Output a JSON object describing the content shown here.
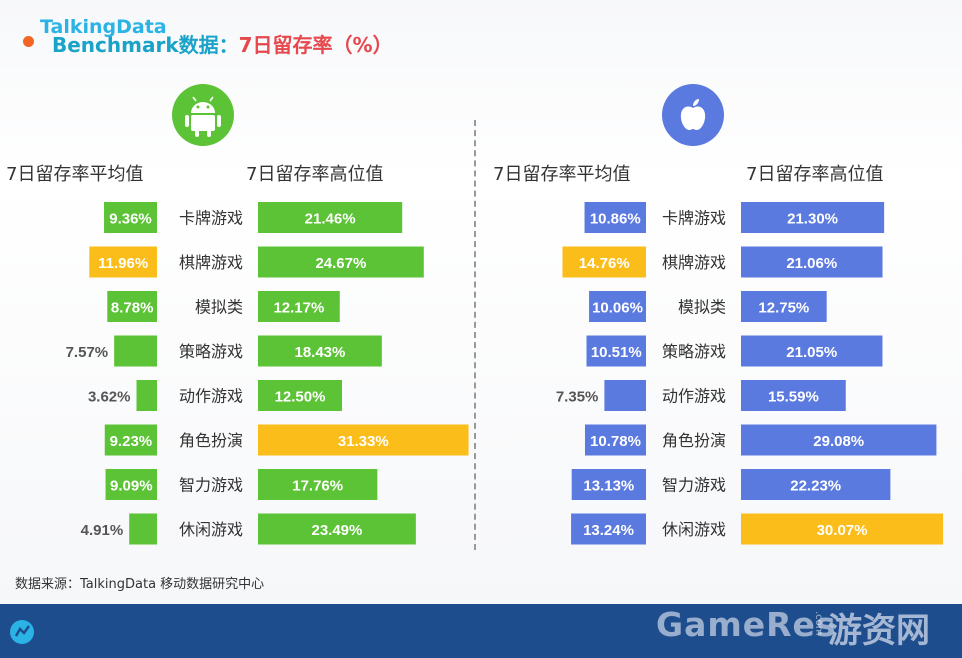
{
  "title": {
    "part1": "Benchmark数据：",
    "part2": "7日留存率（%）"
  },
  "source": "数据来源：TalkingData 移动数据研究中心",
  "footer": {
    "logo": "TalkingData",
    "watermark": "GameRes",
    "watermark_small": ".com",
    "watermark_cn": "游资网"
  },
  "colors": {
    "android_bar": "#5cc336",
    "ios_bar": "#5b7ae0",
    "highlight_bar": "#fbbd1a",
    "title_blue": "#1aa3c8",
    "title_red": "#e5484d",
    "footer_bg": "#1e4d8e"
  },
  "icons": {
    "android": "android-robot-icon",
    "ios": "apple-logo-icon",
    "logo": "talkingdata-logo-icon"
  },
  "chart_data": [
    {
      "type": "bar",
      "platform": "android",
      "categories": [
        "卡牌游戏",
        "棋牌游戏",
        "模拟类",
        "策略游戏",
        "动作游戏",
        "角色扮演",
        "智力游戏",
        "休闲游戏"
      ],
      "series": [
        {
          "name": "7日留存率平均值",
          "values": [
            9.36,
            11.96,
            8.78,
            7.57,
            3.62,
            9.23,
            9.09,
            4.91
          ],
          "labels": [
            "9.36%",
            "11.96%",
            "8.78%",
            "7.57%",
            "3.62%",
            "9.23%",
            "9.09%",
            "4.91%"
          ],
          "highlight_index": 1
        },
        {
          "name": "7日留存率高位值",
          "values": [
            21.46,
            24.67,
            12.17,
            18.43,
            12.5,
            31.33,
            17.76,
            23.49
          ],
          "labels": [
            "21.46%",
            "24.67%",
            "12.17%",
            "18.43%",
            "12.50%",
            "31.33%",
            "17.76%",
            "23.49%"
          ],
          "highlight_index": 5
        }
      ]
    },
    {
      "type": "bar",
      "platform": "ios",
      "categories": [
        "卡牌游戏",
        "棋牌游戏",
        "模拟类",
        "策略游戏",
        "动作游戏",
        "角色扮演",
        "智力游戏",
        "休闲游戏"
      ],
      "series": [
        {
          "name": "7日留存率平均值",
          "values": [
            10.86,
            14.76,
            10.06,
            10.51,
            7.35,
            10.78,
            13.13,
            13.24
          ],
          "labels": [
            "10.86%",
            "14.76%",
            "10.06%",
            "10.51%",
            "7.35%",
            "10.78%",
            "13.13%",
            "13.24%"
          ],
          "highlight_index": 1
        },
        {
          "name": "7日留存率高位值",
          "values": [
            21.3,
            21.06,
            12.75,
            21.05,
            15.59,
            29.08,
            22.23,
            30.07
          ],
          "labels": [
            "21.30%",
            "21.06%",
            "12.75%",
            "21.05%",
            "15.59%",
            "29.08%",
            "22.23%",
            "30.07%"
          ],
          "highlight_index": 7
        }
      ]
    }
  ]
}
